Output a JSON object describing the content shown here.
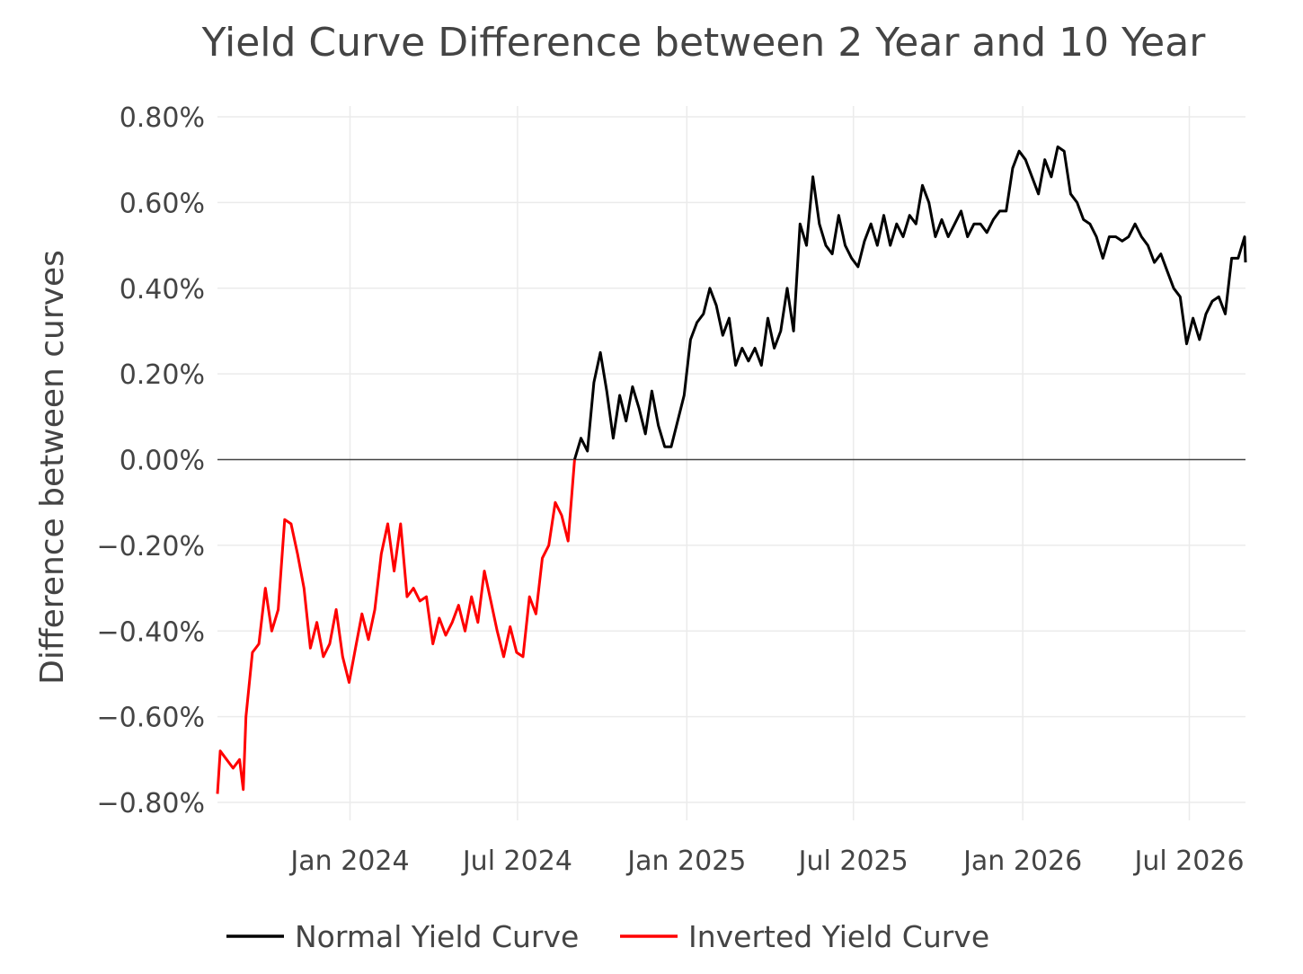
{
  "chart_data": {
    "type": "line",
    "title": "Yield Curve Difference between 2 Year and 10 Year",
    "xlabel": "",
    "ylabel": "Difference between curves",
    "xlim": [
      "2023-08-10",
      "2026-08-31"
    ],
    "ylim": [
      -0.8,
      0.8
    ],
    "y_tick_values": [
      0.8,
      0.6,
      0.4,
      0.2,
      0.0,
      -0.2,
      -0.4,
      -0.6,
      -0.8
    ],
    "y_ticks": [
      "0.80%",
      "0.60%",
      "0.40%",
      "0.20%",
      "0.00%",
      "−0.20%",
      "−0.40%",
      "−0.60%",
      "−0.80%"
    ],
    "x_tick_dates": [
      "2024-01-01",
      "2024-07-01",
      "2025-01-01",
      "2025-07-01",
      "2026-01-01",
      "2026-07-01"
    ],
    "x_ticks": [
      "Jan 2024",
      "Jul 2024",
      "Jan 2025",
      "Jul 2025",
      "Jan 2026",
      "Jul 2026"
    ],
    "grid": true,
    "legend_position": "bottom",
    "series": [
      {
        "name": "Normal Yield Curve",
        "color": "#000000",
        "points": [
          [
            "2024-09-01",
            0.0
          ],
          [
            "2024-09-08",
            0.05
          ],
          [
            "2024-09-15",
            0.02
          ],
          [
            "2024-09-22",
            0.18
          ],
          [
            "2024-09-29",
            0.25
          ],
          [
            "2024-10-06",
            0.16
          ],
          [
            "2024-10-13",
            0.05
          ],
          [
            "2024-10-20",
            0.15
          ],
          [
            "2024-10-27",
            0.09
          ],
          [
            "2024-11-03",
            0.17
          ],
          [
            "2024-11-10",
            0.12
          ],
          [
            "2024-11-17",
            0.06
          ],
          [
            "2024-11-24",
            0.16
          ],
          [
            "2024-12-01",
            0.08
          ],
          [
            "2024-12-08",
            0.03
          ],
          [
            "2024-12-15",
            0.03
          ],
          [
            "2024-12-22",
            0.09
          ],
          [
            "2024-12-29",
            0.15
          ],
          [
            "2025-01-05",
            0.28
          ],
          [
            "2025-01-12",
            0.32
          ],
          [
            "2025-01-19",
            0.34
          ],
          [
            "2025-01-26",
            0.4
          ],
          [
            "2025-02-02",
            0.36
          ],
          [
            "2025-02-09",
            0.29
          ],
          [
            "2025-02-16",
            0.33
          ],
          [
            "2025-02-23",
            0.22
          ],
          [
            "2025-03-02",
            0.26
          ],
          [
            "2025-03-09",
            0.23
          ],
          [
            "2025-03-16",
            0.26
          ],
          [
            "2025-03-23",
            0.22
          ],
          [
            "2025-03-30",
            0.33
          ],
          [
            "2025-04-06",
            0.26
          ],
          [
            "2025-04-13",
            0.3
          ],
          [
            "2025-04-20",
            0.4
          ],
          [
            "2025-04-27",
            0.3
          ],
          [
            "2025-05-04",
            0.55
          ],
          [
            "2025-05-11",
            0.5
          ],
          [
            "2025-05-18",
            0.66
          ],
          [
            "2025-05-25",
            0.55
          ],
          [
            "2025-06-01",
            0.5
          ],
          [
            "2025-06-08",
            0.48
          ],
          [
            "2025-06-15",
            0.57
          ],
          [
            "2025-06-22",
            0.5
          ],
          [
            "2025-06-29",
            0.47
          ],
          [
            "2025-07-06",
            0.45
          ],
          [
            "2025-07-13",
            0.51
          ],
          [
            "2025-07-20",
            0.55
          ],
          [
            "2025-07-27",
            0.5
          ],
          [
            "2025-08-03",
            0.57
          ],
          [
            "2025-08-10",
            0.5
          ],
          [
            "2025-08-17",
            0.55
          ],
          [
            "2025-08-24",
            0.52
          ],
          [
            "2025-08-31",
            0.57
          ],
          [
            "2025-09-07",
            0.55
          ],
          [
            "2025-09-14",
            0.64
          ],
          [
            "2025-09-21",
            0.6
          ],
          [
            "2025-09-28",
            0.52
          ],
          [
            "2025-10-05",
            0.56
          ],
          [
            "2025-10-12",
            0.52
          ],
          [
            "2025-10-19",
            0.55
          ],
          [
            "2025-10-26",
            0.58
          ],
          [
            "2025-11-02",
            0.52
          ],
          [
            "2025-11-09",
            0.55
          ],
          [
            "2025-11-16",
            0.55
          ],
          [
            "2025-11-23",
            0.53
          ],
          [
            "2025-11-30",
            0.56
          ],
          [
            "2025-12-07",
            0.58
          ],
          [
            "2025-12-14",
            0.58
          ],
          [
            "2025-12-21",
            0.68
          ],
          [
            "2025-12-28",
            0.72
          ],
          [
            "2026-01-04",
            0.7
          ],
          [
            "2026-01-11",
            0.66
          ],
          [
            "2026-01-18",
            0.62
          ],
          [
            "2026-01-25",
            0.7
          ],
          [
            "2026-02-01",
            0.66
          ],
          [
            "2026-02-08",
            0.73
          ],
          [
            "2026-02-15",
            0.72
          ],
          [
            "2026-02-22",
            0.62
          ],
          [
            "2026-03-01",
            0.6
          ],
          [
            "2026-03-08",
            0.56
          ],
          [
            "2026-03-15",
            0.55
          ],
          [
            "2026-03-22",
            0.52
          ],
          [
            "2026-03-29",
            0.47
          ],
          [
            "2026-04-05",
            0.52
          ],
          [
            "2026-04-12",
            0.52
          ],
          [
            "2026-04-19",
            0.51
          ],
          [
            "2026-04-26",
            0.52
          ],
          [
            "2026-05-03",
            0.55
          ],
          [
            "2026-05-10",
            0.52
          ],
          [
            "2026-05-17",
            0.5
          ],
          [
            "2026-05-24",
            0.46
          ],
          [
            "2026-05-31",
            0.48
          ],
          [
            "2026-06-07",
            0.44
          ],
          [
            "2026-06-14",
            0.4
          ],
          [
            "2026-06-21",
            0.38
          ],
          [
            "2026-06-28",
            0.27
          ],
          [
            "2026-07-05",
            0.33
          ],
          [
            "2026-07-12",
            0.28
          ],
          [
            "2026-07-19",
            0.34
          ],
          [
            "2026-07-26",
            0.37
          ],
          [
            "2026-08-02",
            0.38
          ],
          [
            "2026-08-09",
            0.34
          ],
          [
            "2026-08-16",
            0.47
          ],
          [
            "2026-08-23",
            0.47
          ],
          [
            "2026-08-30",
            0.52
          ],
          [
            "2026-08-31",
            0.46
          ]
        ]
      },
      {
        "name": "Inverted Yield Curve",
        "color": "#ff0000",
        "points": [
          [
            "2023-08-10",
            -0.78
          ],
          [
            "2023-08-13",
            -0.68
          ],
          [
            "2023-08-20",
            -0.7
          ],
          [
            "2023-08-27",
            -0.72
          ],
          [
            "2023-09-03",
            -0.7
          ],
          [
            "2023-09-07",
            -0.77
          ],
          [
            "2023-09-10",
            -0.6
          ],
          [
            "2023-09-17",
            -0.45
          ],
          [
            "2023-09-24",
            -0.43
          ],
          [
            "2023-10-01",
            -0.3
          ],
          [
            "2023-10-08",
            -0.4
          ],
          [
            "2023-10-15",
            -0.35
          ],
          [
            "2023-10-22",
            -0.14
          ],
          [
            "2023-10-29",
            -0.15
          ],
          [
            "2023-11-05",
            -0.22
          ],
          [
            "2023-11-12",
            -0.3
          ],
          [
            "2023-11-19",
            -0.44
          ],
          [
            "2023-11-26",
            -0.38
          ],
          [
            "2023-12-03",
            -0.46
          ],
          [
            "2023-12-10",
            -0.43
          ],
          [
            "2023-12-17",
            -0.35
          ],
          [
            "2023-12-24",
            -0.46
          ],
          [
            "2023-12-31",
            -0.52
          ],
          [
            "2024-01-07",
            -0.44
          ],
          [
            "2024-01-14",
            -0.36
          ],
          [
            "2024-01-21",
            -0.42
          ],
          [
            "2024-01-28",
            -0.35
          ],
          [
            "2024-02-04",
            -0.22
          ],
          [
            "2024-02-11",
            -0.15
          ],
          [
            "2024-02-18",
            -0.26
          ],
          [
            "2024-02-25",
            -0.15
          ],
          [
            "2024-03-03",
            -0.32
          ],
          [
            "2024-03-10",
            -0.3
          ],
          [
            "2024-03-17",
            -0.33
          ],
          [
            "2024-03-24",
            -0.32
          ],
          [
            "2024-03-31",
            -0.43
          ],
          [
            "2024-04-07",
            -0.37
          ],
          [
            "2024-04-14",
            -0.41
          ],
          [
            "2024-04-21",
            -0.38
          ],
          [
            "2024-04-28",
            -0.34
          ],
          [
            "2024-05-05",
            -0.4
          ],
          [
            "2024-05-12",
            -0.32
          ],
          [
            "2024-05-19",
            -0.38
          ],
          [
            "2024-05-26",
            -0.26
          ],
          [
            "2024-06-02",
            -0.33
          ],
          [
            "2024-06-09",
            -0.4
          ],
          [
            "2024-06-16",
            -0.46
          ],
          [
            "2024-06-23",
            -0.39
          ],
          [
            "2024-06-30",
            -0.45
          ],
          [
            "2024-07-07",
            -0.46
          ],
          [
            "2024-07-14",
            -0.32
          ],
          [
            "2024-07-21",
            -0.36
          ],
          [
            "2024-07-28",
            -0.23
          ],
          [
            "2024-08-04",
            -0.2
          ],
          [
            "2024-08-11",
            -0.1
          ],
          [
            "2024-08-18",
            -0.13
          ],
          [
            "2024-08-25",
            -0.19
          ],
          [
            "2024-09-01",
            0.0
          ]
        ]
      }
    ]
  }
}
